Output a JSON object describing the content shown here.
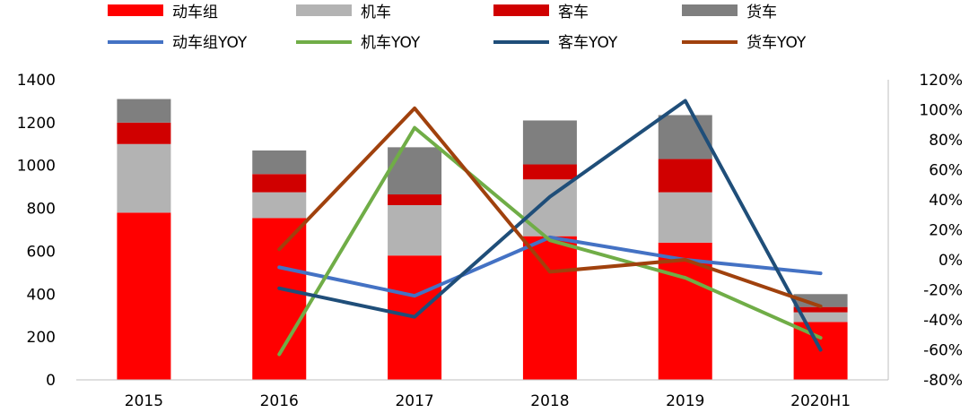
{
  "chart_data": {
    "type": "bar",
    "categories": [
      "2015",
      "2016",
      "2017",
      "2018",
      "2019",
      "2020H1"
    ],
    "bar_series": [
      {
        "name": "动车组",
        "color": "#ff0000",
        "values": [
          780,
          755,
          580,
          670,
          640,
          270
        ]
      },
      {
        "name": "机车",
        "color": "#b3b3b3",
        "values": [
          320,
          120,
          235,
          265,
          235,
          45
        ]
      },
      {
        "name": "客车",
        "color": "#d00000",
        "values": [
          100,
          85,
          50,
          70,
          155,
          25
        ]
      },
      {
        "name": "货车",
        "color": "#7f7f7f",
        "values": [
          110,
          110,
          220,
          205,
          205,
          60
        ]
      }
    ],
    "line_series": [
      {
        "name": "动车组YOY",
        "color": "#4472c4",
        "values": [
          null,
          -5,
          -24,
          15,
          0,
          -9
        ]
      },
      {
        "name": "机车YOY",
        "color": "#70ad47",
        "values": [
          null,
          -63,
          88,
          13,
          -12,
          -52
        ]
      },
      {
        "name": "客车YOY",
        "color": "#1f4e79",
        "values": [
          null,
          -19,
          -38,
          42,
          106,
          -60
        ]
      },
      {
        "name": "货车YOY",
        "color": "#a0410d",
        "values": [
          null,
          7,
          101,
          -8,
          0,
          -31
        ]
      }
    ],
    "y_left": {
      "min": 0,
      "max": 1400,
      "step": 200,
      "ticks": [
        "0",
        "200",
        "400",
        "600",
        "800",
        "1000",
        "1200",
        "1400"
      ]
    },
    "y_right": {
      "min": -80,
      "max": 120,
      "step": 20,
      "ticks": [
        "-80%",
        "-60%",
        "-40%",
        "-20%",
        "0%",
        "20%",
        "40%",
        "60%",
        "80%",
        "100%",
        "120%"
      ]
    },
    "legend_position": "top",
    "grid": false
  }
}
